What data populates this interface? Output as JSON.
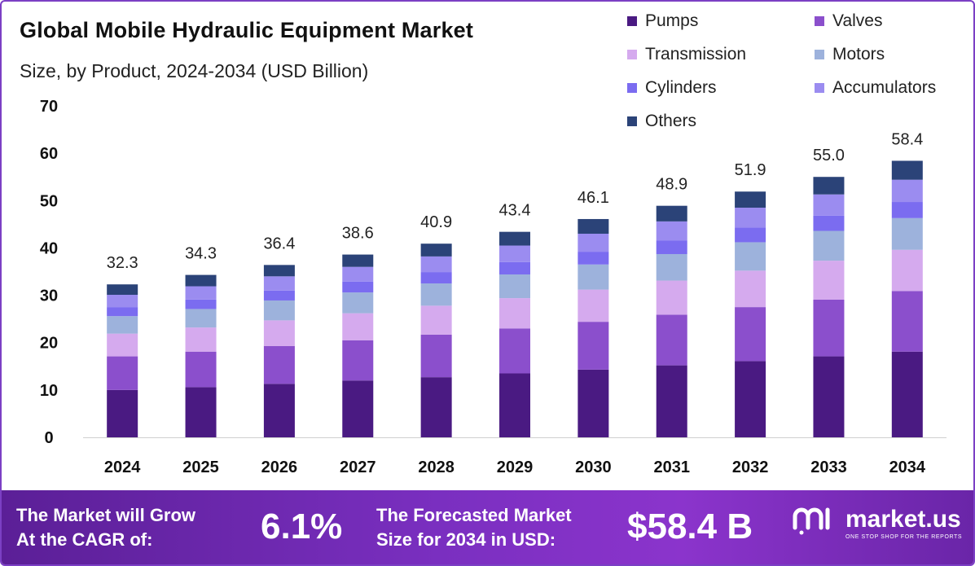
{
  "title": "Global Mobile Hydraulic Equipment Market",
  "subtitle": "Size, by Product, 2024-2034 (USD Billion)",
  "chart_data": {
    "type": "bar",
    "stacked": true,
    "categories": [
      "2024",
      "2025",
      "2026",
      "2027",
      "2028",
      "2029",
      "2030",
      "2031",
      "2032",
      "2033",
      "2034"
    ],
    "ylim": [
      0,
      70
    ],
    "yticks": [
      0,
      10,
      20,
      30,
      40,
      50,
      60,
      70
    ],
    "grid": false,
    "legend_position": "top-right",
    "series": [
      {
        "name": "Pumps",
        "color": "#4a1a82",
        "values": [
          10.0,
          10.6,
          11.3,
          12.0,
          12.7,
          13.5,
          14.3,
          15.2,
          16.1,
          17.1,
          18.1
        ]
      },
      {
        "name": "Valves",
        "color": "#8b4fcc",
        "values": [
          7.1,
          7.5,
          8.0,
          8.5,
          9.0,
          9.5,
          10.1,
          10.7,
          11.4,
          12.0,
          12.8
        ]
      },
      {
        "name": "Transmission",
        "color": "#d5aaee",
        "values": [
          4.8,
          5.1,
          5.4,
          5.7,
          6.1,
          6.4,
          6.8,
          7.2,
          7.7,
          8.2,
          8.7
        ]
      },
      {
        "name": "Motors",
        "color": "#9db2dc",
        "values": [
          3.7,
          3.9,
          4.2,
          4.4,
          4.7,
          5.0,
          5.3,
          5.6,
          6.0,
          6.3,
          6.7
        ]
      },
      {
        "name": "Cylinders",
        "color": "#7b6cf0",
        "values": [
          1.9,
          2.0,
          2.1,
          2.3,
          2.4,
          2.6,
          2.7,
          2.9,
          3.1,
          3.2,
          3.4
        ]
      },
      {
        "name": "Accumulators",
        "color": "#9b8cf0",
        "values": [
          2.6,
          2.8,
          3.0,
          3.1,
          3.3,
          3.5,
          3.8,
          4.0,
          4.2,
          4.5,
          4.7
        ]
      },
      {
        "name": "Others",
        "color": "#2b4378",
        "values": [
          2.2,
          2.4,
          2.4,
          2.6,
          2.7,
          2.9,
          3.1,
          3.3,
          3.4,
          3.7,
          4.0
        ]
      }
    ],
    "totals": [
      32.3,
      34.3,
      36.4,
      38.6,
      40.9,
      43.4,
      46.1,
      48.9,
      51.9,
      55.0,
      58.4
    ],
    "total_labels": [
      "32.3",
      "34.3",
      "36.4",
      "38.6",
      "40.9",
      "43.4",
      "46.1",
      "48.9",
      "51.9",
      "55.0",
      "58.4"
    ]
  },
  "banner": {
    "cagr_label_line1": "The Market will Grow",
    "cagr_label_line2": "At the CAGR of:",
    "cagr_value": "6.1%",
    "forecast_label_line1": "The Forecasted Market",
    "forecast_label_line2": "Size for 2034 in USD:",
    "forecast_value": "$58.4 B",
    "brand_name": "market.us",
    "brand_tagline": "ONE STOP SHOP FOR THE REPORTS",
    "brand_icon": "market-us-logo-icon"
  }
}
